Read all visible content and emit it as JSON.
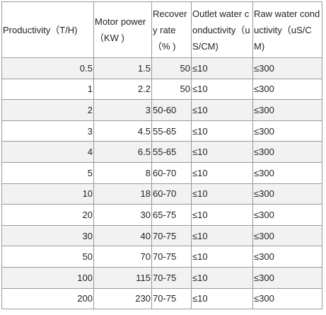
{
  "table": {
    "header": [
      "Productivity（T/H)",
      "Motor power（KW )",
      "Recovery rate（% )",
      "Outlet water conductivity（uS/CM)",
      "Raw water conductivity（uS/CM)"
    ],
    "rows": [
      [
        "0.5",
        "1.5",
        "50",
        "≤10",
        "≤300"
      ],
      [
        "1",
        "2.2",
        "50",
        "≤10",
        "≤300"
      ],
      [
        "2",
        "3",
        "50-60",
        "≤10",
        "≤300"
      ],
      [
        "3",
        "4.5",
        "55-65",
        "≤10",
        "≤300"
      ],
      [
        "4",
        "6.5",
        "55-65",
        "≤10",
        "≤300"
      ],
      [
        "5",
        "8",
        "60-70",
        "≤10",
        "≤300"
      ],
      [
        "10",
        "18",
        "60-70",
        "≤10",
        "≤300"
      ],
      [
        "20",
        "30",
        "65-75",
        "≤10",
        "≤300"
      ],
      [
        "30",
        "40",
        "70-75",
        "≤10",
        "≤300"
      ],
      [
        "50",
        "70",
        "70-75",
        "≤10",
        "≤300"
      ],
      [
        "100",
        "115",
        "70-75",
        "≤10",
        "≤300"
      ],
      [
        "200",
        "230",
        "70-75",
        "≤10",
        "≤300"
      ]
    ]
  }
}
